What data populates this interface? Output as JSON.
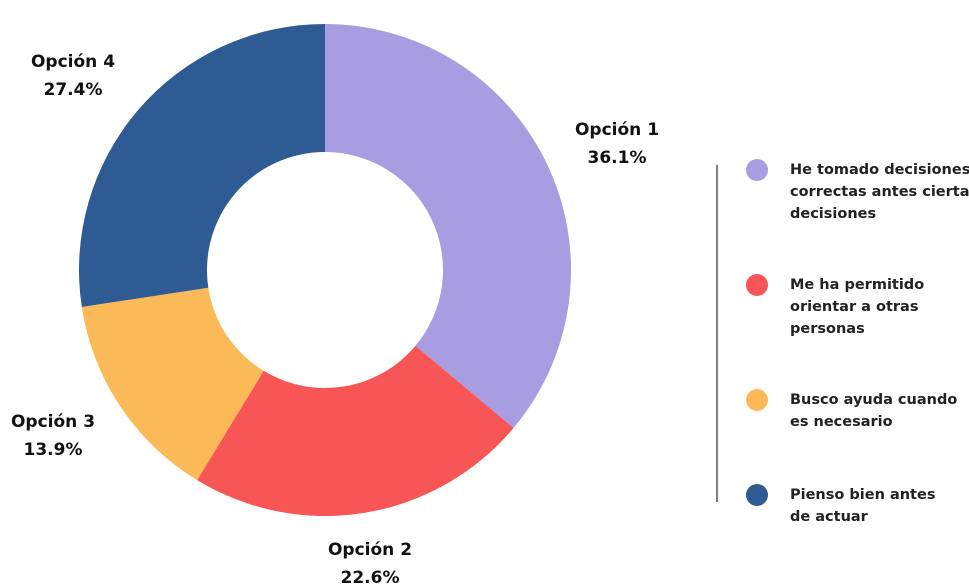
{
  "chart_data": {
    "type": "donut",
    "categories": [
      "Opción 1",
      "Opción 2",
      "Opción 3",
      "Opción 4"
    ],
    "values": [
      36.1,
      22.6,
      13.9,
      27.4
    ],
    "value_labels": [
      "36.1%",
      "22.6%",
      "13.9%",
      "27.4%"
    ],
    "colors": [
      "#a89de1",
      "#f85656",
      "#fbb957",
      "#2e5b94"
    ],
    "legend": [
      [
        "He tomado decisiones",
        "correctas antes ciertas",
        "decisiones"
      ],
      [
        "Me ha permitido",
        "orientar a otras",
        "personas"
      ],
      [
        "Busco ayuda cuando",
        "es necesario"
      ],
      [
        "Pienso bien antes",
        "de actuar"
      ]
    ]
  }
}
